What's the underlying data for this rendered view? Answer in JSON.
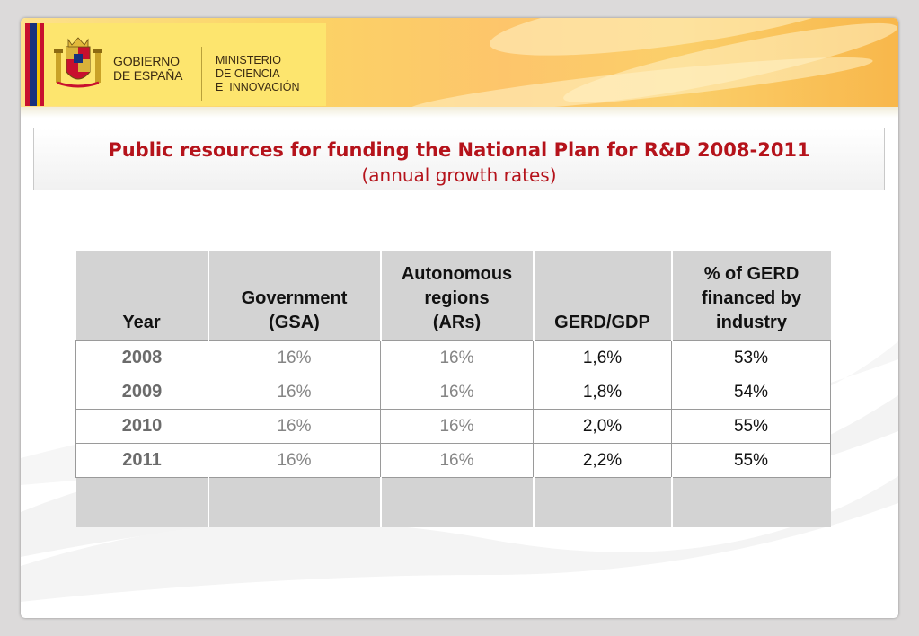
{
  "header": {
    "government_name": "GOBIERNO\nDE ESPAÑA",
    "ministry_name": "MINISTERIO\nDE CIENCIA\nE  INNOVACIÓN"
  },
  "title": {
    "main": "Public resources for funding the National Plan for R&D 2008-2011",
    "sub": "(annual growth rates)"
  },
  "table": {
    "columns": [
      "Year",
      "Government\n(GSA)",
      "Autonomous\nregions\n(ARs)",
      "GERD/GDP",
      "% of GERD\nfinanced  by\nindustry"
    ],
    "rows": [
      {
        "year": "2008",
        "gsa": "16%",
        "ars": "16%",
        "gerd_gdp": "1,6%",
        "industry": "53%"
      },
      {
        "year": "2009",
        "gsa": "16%",
        "ars": "16%",
        "gerd_gdp": "1,8%",
        "industry": "54%"
      },
      {
        "year": "2010",
        "gsa": "16%",
        "ars": "16%",
        "gerd_gdp": "2,0%",
        "industry": "55%"
      },
      {
        "year": "2011",
        "gsa": "16%",
        "ars": "16%",
        "gerd_gdp": "2,2%",
        "industry": "55%"
      }
    ]
  },
  "colors": {
    "title_red": "#b5131b",
    "header_gold": "#fbd465",
    "table_header_grey": "#d3d3d3"
  }
}
